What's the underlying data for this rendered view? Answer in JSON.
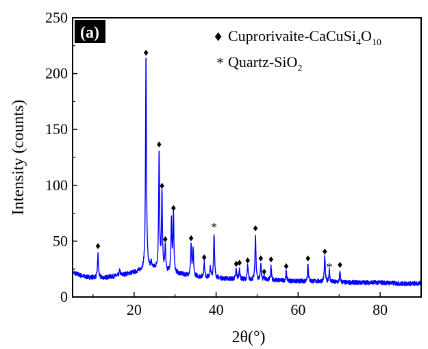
{
  "chart_data": {
    "type": "line",
    "panel_label": "(a)",
    "xlabel": "2θ(°)",
    "ylabel": "Intensity (counts)",
    "xlim": [
      5,
      90
    ],
    "ylim": [
      0,
      250
    ],
    "xticks": [
      20,
      40,
      60,
      80
    ],
    "yticks": [
      0,
      50,
      100,
      150,
      200,
      250
    ],
    "grid": false,
    "legend_position": "top-right",
    "line_color": "#0000ff",
    "legend": [
      {
        "marker": "♦",
        "label": "Cuprorivaite-CaCuSi",
        "sub1": "4",
        "mid": "O",
        "sub2": "10"
      },
      {
        "marker": "*",
        "label": "Quartz-SiO",
        "sub1": "2",
        "mid": "",
        "sub2": ""
      }
    ],
    "baseline": [
      [
        5,
        22
      ],
      [
        8,
        18
      ],
      [
        12,
        17
      ],
      [
        16,
        19
      ],
      [
        20,
        22
      ],
      [
        24,
        26
      ],
      [
        28,
        22
      ],
      [
        32,
        20
      ],
      [
        36,
        18
      ],
      [
        40,
        17
      ],
      [
        45,
        16
      ],
      [
        50,
        15
      ],
      [
        55,
        15
      ],
      [
        60,
        14
      ],
      [
        65,
        14
      ],
      [
        70,
        13
      ],
      [
        75,
        13
      ],
      [
        80,
        13
      ],
      [
        85,
        12
      ],
      [
        90,
        12
      ]
    ],
    "peaks": [
      {
        "x": 11.2,
        "y": 40,
        "marker": "♦",
        "label_y": 46
      },
      {
        "x": 16.5,
        "y": 24,
        "marker": "",
        "label_y": 0
      },
      {
        "x": 22.9,
        "y": 218,
        "marker": "♦",
        "label_y": 219
      },
      {
        "x": 24.2,
        "y": 30,
        "marker": "",
        "label_y": 0
      },
      {
        "x": 26.1,
        "y": 131,
        "marker": "♦",
        "label_y": 137
      },
      {
        "x": 26.8,
        "y": 93,
        "marker": "♦",
        "label_y": 100
      },
      {
        "x": 27.6,
        "y": 45,
        "marker": "♦",
        "label_y": 52
      },
      {
        "x": 29.1,
        "y": 70,
        "marker": "",
        "label_y": 0
      },
      {
        "x": 29.6,
        "y": 74,
        "marker": "♦",
        "label_y": 80
      },
      {
        "x": 33.9,
        "y": 47,
        "marker": "♦",
        "label_y": 53
      },
      {
        "x": 34.4,
        "y": 42,
        "marker": "",
        "label_y": 0
      },
      {
        "x": 37.1,
        "y": 31,
        "marker": "♦",
        "label_y": 36
      },
      {
        "x": 38.6,
        "y": 26,
        "marker": "",
        "label_y": 0
      },
      {
        "x": 39.5,
        "y": 58,
        "marker": "*",
        "label_y": 62
      },
      {
        "x": 44.9,
        "y": 25,
        "marker": "♦",
        "label_y": 30
      },
      {
        "x": 45.7,
        "y": 25,
        "marker": "♦",
        "label_y": 31
      },
      {
        "x": 47.7,
        "y": 28,
        "marker": "♦",
        "label_y": 33
      },
      {
        "x": 49.6,
        "y": 57,
        "marker": "♦",
        "label_y": 62
      },
      {
        "x": 50.9,
        "y": 30,
        "marker": "♦",
        "label_y": 35
      },
      {
        "x": 51.7,
        "y": 19,
        "marker": "♦",
        "label_y": 23
      },
      {
        "x": 53.4,
        "y": 27,
        "marker": "♦",
        "label_y": 34
      },
      {
        "x": 57.1,
        "y": 23,
        "marker": "♦",
        "label_y": 28
      },
      {
        "x": 62.4,
        "y": 30,
        "marker": "♦",
        "label_y": 35
      },
      {
        "x": 66.5,
        "y": 36,
        "marker": "♦",
        "label_y": 41
      },
      {
        "x": 67.6,
        "y": 24,
        "marker": "*",
        "label_y": 26
      },
      {
        "x": 70.2,
        "y": 22,
        "marker": "♦",
        "label_y": 29
      }
    ]
  }
}
